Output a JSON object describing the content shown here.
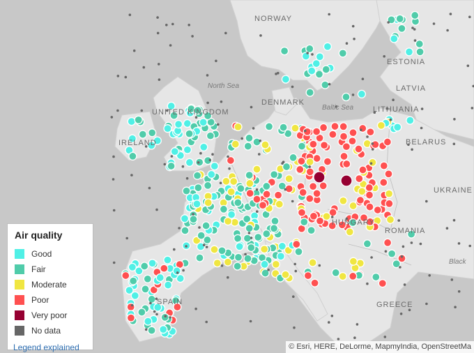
{
  "map": {
    "labels": {
      "norway": "NORWAY",
      "estonia": "ESTONIA",
      "latvia": "LATVIA",
      "lithuania": "LITHUANIA",
      "denmark": "DENMARK",
      "north_sea": "North Sea",
      "baltic_sea": "Baltic Sea",
      "united_kingdom": "UNITED KINGDOM",
      "ireland": "IRELAND",
      "belarus": "BELARUS",
      "ukraine": "UKRAINE",
      "hungary": "HUNGARY",
      "romania": "ROMANIA",
      "black_sea": "Black",
      "greece": "GREECE",
      "spain": "SPAIN"
    },
    "colors": {
      "good": "#50f0e6",
      "fair": "#50ccaa",
      "moderate": "#f0e641",
      "poor": "#ff5050",
      "very_poor": "#960032",
      "no_data": "#666666",
      "water": "#c8c8c8",
      "land": "#e6e6e6"
    }
  },
  "legend": {
    "title": "Air quality",
    "items": [
      {
        "label": "Good",
        "color": "#50f0e6"
      },
      {
        "label": "Fair",
        "color": "#50ccaa"
      },
      {
        "label": "Moderate",
        "color": "#f0e641"
      },
      {
        "label": "Poor",
        "color": "#ff5050"
      },
      {
        "label": "Very poor",
        "color": "#960032"
      },
      {
        "label": "No data",
        "color": "#666666"
      }
    ],
    "link": "Legend explained"
  },
  "attribution": "© Esri, HERE, DeLorme, MapmyIndia, OpenStreetMa"
}
